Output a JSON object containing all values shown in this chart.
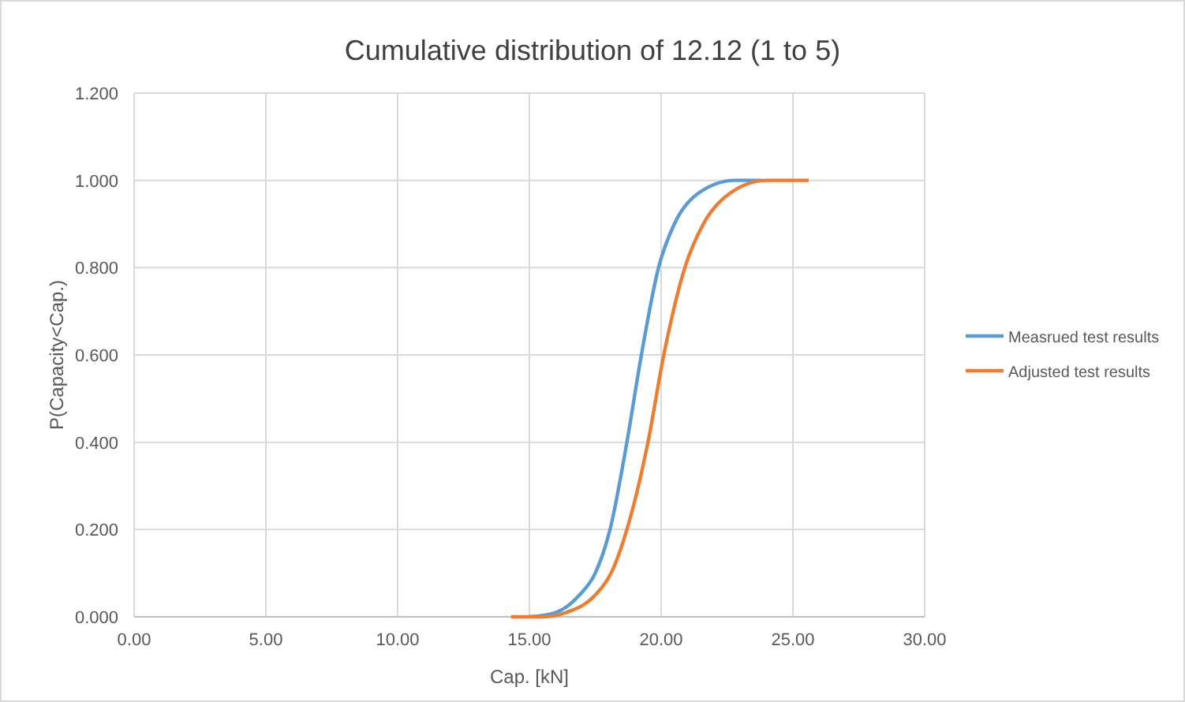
{
  "chart_data": {
    "type": "line",
    "title": "Cumulative distribution of 12.12 (1 to 5)",
    "xlabel": "Cap. [kN]",
    "ylabel": "P(Capacity<Cap.)",
    "xlim": [
      0,
      30
    ],
    "xticks": [
      {
        "value": 0,
        "label": "0.00"
      },
      {
        "value": 5,
        "label": "5.00"
      },
      {
        "value": 10,
        "label": "10.00"
      },
      {
        "value": 15,
        "label": "15.00"
      },
      {
        "value": 20,
        "label": "20.00"
      },
      {
        "value": 25,
        "label": "25.00"
      },
      {
        "value": 30,
        "label": "30.00"
      }
    ],
    "ylim": [
      0,
      1.2
    ],
    "yticks": [
      {
        "value": 0,
        "label": "0.000"
      },
      {
        "value": 0.2,
        "label": "0.200"
      },
      {
        "value": 0.4,
        "label": "0.400"
      },
      {
        "value": 0.6,
        "label": "0.600"
      },
      {
        "value": 0.8,
        "label": "0.800"
      },
      {
        "value": 1,
        "label": "1.000"
      },
      {
        "value": 1.2,
        "label": "1.200"
      }
    ],
    "grid": true,
    "legend": "right",
    "marker": "none",
    "line_style": "solid",
    "series": [
      {
        "name": "Measrued test results",
        "color": "#5b9bd5",
        "x": [
          15.0,
          16.0,
          16.9,
          17.5,
          18.06,
          18.7,
          19.25,
          19.9,
          20.5,
          21.4,
          22.8,
          23.8
        ],
        "values": [
          0,
          0.01,
          0.05,
          0.1,
          0.2,
          0.4,
          0.6,
          0.8,
          0.9,
          0.97,
          1.0,
          1.0
        ]
      },
      {
        "name": "Adjusted test results",
        "color": "#ed7d31",
        "x": [
          14.3,
          15.5,
          16.4,
          17.5,
          18.1,
          18.7,
          19.5,
          20.1,
          20.9,
          21.6,
          22.6,
          24.0,
          25.6
        ],
        "values": [
          0,
          0,
          0.01,
          0.05,
          0.1,
          0.2,
          0.4,
          0.6,
          0.8,
          0.9,
          0.97,
          1.0,
          1.0
        ]
      }
    ]
  }
}
